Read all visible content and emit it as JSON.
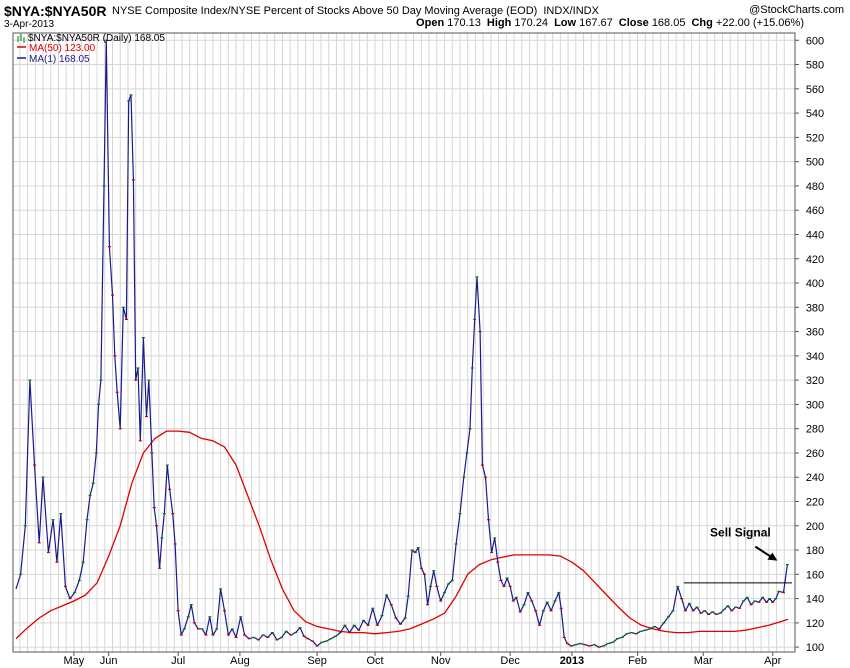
{
  "header": {
    "symbol": "$NYA:$NYA50R",
    "description": "NYSE Composite Index/NYSE Percent of Stocks Above 50 Day Moving Average (EOD)",
    "exchange": "INDX/INDX",
    "watermark": "@StockCharts.com",
    "date": "3-Apr-2013",
    "open_label": "Open",
    "open": "170.13",
    "high_label": "High",
    "high": "170.24",
    "low_label": "Low",
    "low": "167.67",
    "close_label": "Close",
    "close": "168.05",
    "chg_label": "Chg",
    "chg": "+22.00 (+15.06%)"
  },
  "legend": {
    "main": "$NYA:$NYA50R (Daily) 168.05",
    "ma50": "MA(50) 123.00",
    "ma1": "MA(1) 168.05"
  },
  "colors": {
    "price": "#1a1a8c",
    "ma50": "#e00000",
    "grid": "#d6d6d6",
    "up_tick": "#008000",
    "down_tick": "#cc0000"
  },
  "chart_data": {
    "type": "line",
    "title": "$NYA:$NYA50R",
    "xlabel": "",
    "ylabel": "",
    "ylim": [
      96,
      606
    ],
    "y_ticks": [
      100,
      120,
      140,
      160,
      180,
      200,
      220,
      240,
      260,
      280,
      300,
      320,
      340,
      360,
      380,
      400,
      420,
      440,
      460,
      480,
      500,
      520,
      540,
      560,
      580,
      600
    ],
    "grid": true,
    "legend_position": "top-left",
    "x_tick_labels": [
      {
        "label": "May",
        "week": 7.5
      },
      {
        "label": "Jun",
        "week": 12
      },
      {
        "label": "Jul",
        "week": 21
      },
      {
        "label": "Aug",
        "week": 29
      },
      {
        "label": "Sep",
        "week": 39
      },
      {
        "label": "Oct",
        "week": 46.5
      },
      {
        "label": "Nov",
        "week": 55
      },
      {
        "label": "Dec",
        "week": 64
      },
      {
        "label": "2013",
        "week": 72,
        "bold": true
      },
      {
        "label": "Feb",
        "week": 80.5
      },
      {
        "label": "Mar",
        "week": 89
      },
      {
        "label": "Apr",
        "week": 98
      }
    ],
    "annotation": {
      "text": "Sell Signal",
      "level": 153,
      "from_week": 86.5,
      "to_week": 100.5,
      "point_week": 99.9,
      "point_value": 168
    },
    "series": [
      {
        "name": "$NYA:$NYA50R",
        "color": "#1a1a8c",
        "points": [
          [
            0,
            148
          ],
          [
            0.6,
            160
          ],
          [
            1.2,
            200
          ],
          [
            1.8,
            320
          ],
          [
            2.4,
            250
          ],
          [
            3,
            186
          ],
          [
            3.5,
            240
          ],
          [
            4.2,
            178
          ],
          [
            4.8,
            205
          ],
          [
            5.3,
            170
          ],
          [
            5.8,
            210
          ],
          [
            6.4,
            150
          ],
          [
            7,
            140
          ],
          [
            7.6,
            145
          ],
          [
            8.2,
            155
          ],
          [
            8.7,
            170
          ],
          [
            9.2,
            205
          ],
          [
            9.6,
            225
          ],
          [
            10,
            235
          ],
          [
            10.4,
            260
          ],
          [
            10.7,
            300
          ],
          [
            11,
            320
          ],
          [
            11.4,
            480
          ],
          [
            11.7,
            600
          ],
          [
            12.1,
            430
          ],
          [
            12.5,
            390
          ],
          [
            12.8,
            340
          ],
          [
            13.1,
            310
          ],
          [
            13.5,
            280
          ],
          [
            13.9,
            380
          ],
          [
            14.3,
            370
          ],
          [
            14.6,
            550
          ],
          [
            14.9,
            555
          ],
          [
            15.2,
            485
          ],
          [
            15.5,
            320
          ],
          [
            15.8,
            330
          ],
          [
            16.1,
            270
          ],
          [
            16.5,
            355
          ],
          [
            16.9,
            290
          ],
          [
            17.2,
            320
          ],
          [
            17.6,
            260
          ],
          [
            17.9,
            215
          ],
          [
            18.2,
            200
          ],
          [
            18.6,
            165
          ],
          [
            18.9,
            190
          ],
          [
            19.2,
            210
          ],
          [
            19.6,
            250
          ],
          [
            19.9,
            230
          ],
          [
            20.3,
            210
          ],
          [
            20.6,
            185
          ],
          [
            21,
            130
          ],
          [
            21.4,
            110
          ],
          [
            21.8,
            115
          ],
          [
            22.3,
            125
          ],
          [
            22.7,
            135
          ],
          [
            23.1,
            120
          ],
          [
            23.6,
            115
          ],
          [
            24.1,
            115
          ],
          [
            24.6,
            110
          ],
          [
            25.1,
            125
          ],
          [
            25.5,
            110
          ],
          [
            26,
            115
          ],
          [
            26.5,
            148
          ],
          [
            27,
            130
          ],
          [
            27.5,
            110
          ],
          [
            28,
            115
          ],
          [
            28.5,
            108
          ],
          [
            29.1,
            125
          ],
          [
            29.6,
            110
          ],
          [
            30.2,
            107
          ],
          [
            30.8,
            108
          ],
          [
            31.4,
            106
          ],
          [
            32,
            110
          ],
          [
            32.6,
            108
          ],
          [
            33.2,
            112
          ],
          [
            33.8,
            106
          ],
          [
            34.4,
            108
          ],
          [
            35,
            113
          ],
          [
            35.6,
            110
          ],
          [
            36.2,
            112
          ],
          [
            36.8,
            116
          ],
          [
            37.3,
            109
          ],
          [
            37.8,
            107
          ],
          [
            38.4,
            105
          ],
          [
            39,
            101
          ],
          [
            39.6,
            104
          ],
          [
            40.2,
            105
          ],
          [
            40.8,
            107
          ],
          [
            41.4,
            109
          ],
          [
            42,
            112
          ],
          [
            42.6,
            118
          ],
          [
            43.2,
            112
          ],
          [
            43.8,
            118
          ],
          [
            44.4,
            114
          ],
          [
            45,
            122
          ],
          [
            45.6,
            118
          ],
          [
            46.2,
            132
          ],
          [
            46.8,
            118
          ],
          [
            47.4,
            126
          ],
          [
            48,
            143
          ],
          [
            48.6,
            135
          ],
          [
            49.2,
            124
          ],
          [
            49.8,
            119
          ],
          [
            50.4,
            124
          ],
          [
            50.8,
            142
          ],
          [
            51.3,
            180
          ],
          [
            51.7,
            178
          ],
          [
            52.1,
            182
          ],
          [
            52.5,
            165
          ],
          [
            52.9,
            160
          ],
          [
            53.3,
            135
          ],
          [
            53.7,
            150
          ],
          [
            54.1,
            163
          ],
          [
            54.5,
            150
          ],
          [
            55,
            138
          ],
          [
            55.5,
            145
          ],
          [
            56,
            152
          ],
          [
            56.5,
            155
          ],
          [
            57,
            185
          ],
          [
            57.5,
            210
          ],
          [
            58,
            240
          ],
          [
            58.4,
            260
          ],
          [
            58.8,
            280
          ],
          [
            59.1,
            330
          ],
          [
            59.4,
            370
          ],
          [
            59.7,
            405
          ],
          [
            60.1,
            360
          ],
          [
            60.4,
            250
          ],
          [
            60.8,
            240
          ],
          [
            61.2,
            205
          ],
          [
            61.6,
            178
          ],
          [
            62,
            190
          ],
          [
            62.4,
            170
          ],
          [
            62.8,
            155
          ],
          [
            63.2,
            150
          ],
          [
            63.6,
            157
          ],
          [
            64,
            150
          ],
          [
            64.4,
            138
          ],
          [
            64.8,
            141
          ],
          [
            65.3,
            129
          ],
          [
            65.8,
            135
          ],
          [
            66.3,
            145
          ],
          [
            66.8,
            138
          ],
          [
            67.3,
            130
          ],
          [
            67.8,
            118
          ],
          [
            68.3,
            130
          ],
          [
            68.8,
            137
          ],
          [
            69.3,
            130
          ],
          [
            69.8,
            138
          ],
          [
            70.3,
            145
          ],
          [
            70.6,
            132
          ],
          [
            71,
            108
          ],
          [
            71.4,
            103
          ],
          [
            71.9,
            101
          ],
          [
            72.5,
            102
          ],
          [
            73.1,
            103
          ],
          [
            73.7,
            102
          ],
          [
            74.3,
            101
          ],
          [
            74.9,
            102
          ],
          [
            75.5,
            100
          ],
          [
            76.1,
            101
          ],
          [
            76.7,
            103
          ],
          [
            77.3,
            104
          ],
          [
            77.9,
            107
          ],
          [
            78.5,
            108
          ],
          [
            79.1,
            111
          ],
          [
            79.7,
            112
          ],
          [
            80.3,
            111
          ],
          [
            80.9,
            113
          ],
          [
            81.5,
            114
          ],
          [
            82.1,
            115
          ],
          [
            82.7,
            117
          ],
          [
            83.3,
            115
          ],
          [
            83.9,
            120
          ],
          [
            84.5,
            125
          ],
          [
            85.1,
            130
          ],
          [
            85.7,
            150
          ],
          [
            86.2,
            140
          ],
          [
            86.7,
            130
          ],
          [
            87.2,
            136
          ],
          [
            87.7,
            130
          ],
          [
            88.2,
            133
          ],
          [
            88.7,
            128
          ],
          [
            89.2,
            130
          ],
          [
            89.7,
            127
          ],
          [
            90.2,
            129
          ],
          [
            90.7,
            127
          ],
          [
            91.2,
            128
          ],
          [
            91.7,
            131
          ],
          [
            92.2,
            134
          ],
          [
            92.7,
            130
          ],
          [
            93.2,
            133
          ],
          [
            93.7,
            132
          ],
          [
            94.2,
            138
          ],
          [
            94.7,
            141
          ],
          [
            95.2,
            135
          ],
          [
            95.7,
            138
          ],
          [
            96.2,
            137
          ],
          [
            96.7,
            141
          ],
          [
            97.2,
            137
          ],
          [
            97.6,
            140
          ],
          [
            98,
            137
          ],
          [
            98.4,
            140
          ],
          [
            98.8,
            146
          ],
          [
            99.4,
            145
          ],
          [
            99.9,
            168
          ]
        ]
      },
      {
        "name": "MA(50)",
        "color": "#e00000",
        "points": [
          [
            0,
            107
          ],
          [
            1.5,
            116
          ],
          [
            3,
            124
          ],
          [
            4.5,
            130
          ],
          [
            6,
            134
          ],
          [
            7.5,
            138
          ],
          [
            9,
            143
          ],
          [
            10.5,
            153
          ],
          [
            12,
            175
          ],
          [
            13.5,
            200
          ],
          [
            15,
            235
          ],
          [
            16.5,
            260
          ],
          [
            18,
            272
          ],
          [
            19.5,
            278
          ],
          [
            21,
            278
          ],
          [
            22.5,
            277
          ],
          [
            24,
            272
          ],
          [
            25.5,
            270
          ],
          [
            27,
            265
          ],
          [
            28.5,
            250
          ],
          [
            30,
            225
          ],
          [
            31.5,
            200
          ],
          [
            33,
            172
          ],
          [
            34.5,
            148
          ],
          [
            36,
            130
          ],
          [
            37.5,
            121
          ],
          [
            39,
            117
          ],
          [
            40.5,
            115
          ],
          [
            42,
            113
          ],
          [
            43.5,
            112
          ],
          [
            45,
            112
          ],
          [
            46.5,
            111
          ],
          [
            48,
            112
          ],
          [
            49.5,
            113
          ],
          [
            51,
            115
          ],
          [
            52.5,
            119
          ],
          [
            54,
            123
          ],
          [
            55.5,
            128
          ],
          [
            57,
            142
          ],
          [
            58.5,
            160
          ],
          [
            60,
            168
          ],
          [
            61.5,
            172
          ],
          [
            63,
            174
          ],
          [
            64.5,
            176
          ],
          [
            66,
            176
          ],
          [
            67.5,
            176
          ],
          [
            69,
            176
          ],
          [
            70.5,
            175
          ],
          [
            72,
            170
          ],
          [
            73.5,
            163
          ],
          [
            75,
            153
          ],
          [
            76.5,
            143
          ],
          [
            78,
            133
          ],
          [
            79.5,
            124
          ],
          [
            81,
            118
          ],
          [
            82.5,
            115
          ],
          [
            84,
            113
          ],
          [
            85.5,
            112
          ],
          [
            87,
            112
          ],
          [
            88.5,
            113
          ],
          [
            90,
            113
          ],
          [
            91.5,
            113
          ],
          [
            93,
            113
          ],
          [
            94.5,
            114
          ],
          [
            96,
            116
          ],
          [
            97.5,
            118
          ],
          [
            99,
            121
          ],
          [
            100,
            123
          ]
        ]
      }
    ]
  }
}
